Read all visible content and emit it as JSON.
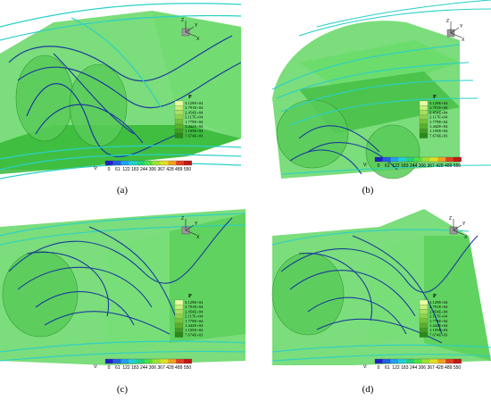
{
  "figure": {
    "panels": [
      {
        "id": "a",
        "caption": "(a)"
      },
      {
        "id": "b",
        "caption": "(b)"
      },
      {
        "id": "c",
        "caption": "(c)"
      },
      {
        "id": "d",
        "caption": "(d)"
      }
    ],
    "pressure_legend": {
      "title": "P",
      "levels": [
        "3.129E+04",
        "2.791E+04",
        "2.454E+04",
        "2.117E+04",
        "1.779E+04",
        "1.442E+04",
        "1.105E+04",
        "7.674E+03"
      ],
      "colors": [
        "#e8ffa0",
        "#c8f078",
        "#a8e060",
        "#8cd24a",
        "#72c23a",
        "#58b02c",
        "#3f9c22",
        "#2a8a18"
      ]
    },
    "velocity_bar": {
      "label": "V:",
      "ticks": [
        "0",
        "61",
        "122",
        "183",
        "244",
        "306",
        "367",
        "428",
        "489",
        "550"
      ],
      "colors": [
        "#2020c8",
        "#2060e0",
        "#20a0f0",
        "#20d0d0",
        "#20d080",
        "#50e040",
        "#a0e030",
        "#e0e020",
        "#f0a020",
        "#e04020",
        "#c01818"
      ]
    },
    "axes": {
      "x": "X",
      "y": "Y",
      "z": "Z"
    },
    "colors": {
      "body_fill": "#3cc83c",
      "body_fill_light": "#78e078",
      "streamline_dark": "#1a3c9c",
      "streamline_light": "#2ad0c8"
    }
  }
}
